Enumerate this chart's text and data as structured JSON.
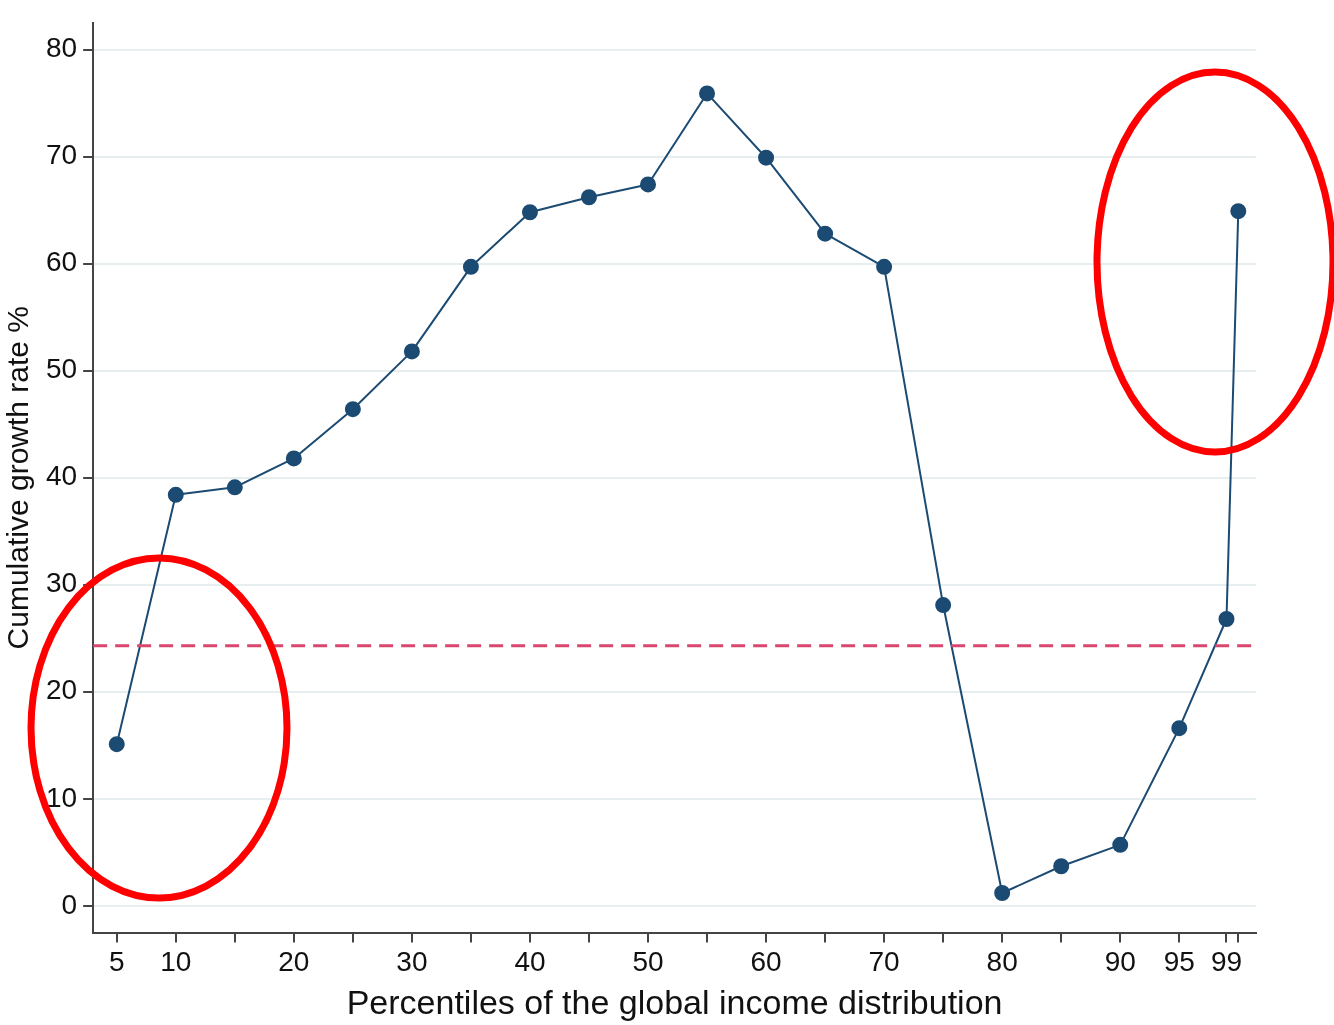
{
  "chart_data": {
    "type": "line",
    "xlabel": "Percentiles of the global income distribution",
    "ylabel": "Cumulative growth rate %",
    "x": [
      5,
      10,
      15,
      20,
      25,
      30,
      35,
      40,
      45,
      50,
      55,
      60,
      65,
      70,
      75,
      80,
      85,
      90,
      95,
      99,
      100
    ],
    "series": [
      {
        "color": "#1b4a72",
        "values": [
          15.1,
          38.4,
          39.1,
          41.8,
          46.4,
          51.8,
          59.7,
          64.8,
          66.2,
          67.4,
          75.9,
          69.9,
          62.8,
          59.7,
          28.1,
          1.2,
          3.7,
          5.7,
          16.6,
          26.8,
          64.9
        ]
      }
    ],
    "xlim": [
      3,
      101.5
    ],
    "xticks": [
      5,
      10,
      {
        "value": 15,
        "label": null
      },
      20,
      {
        "value": 25,
        "label": null
      },
      30,
      {
        "value": 35,
        "label": null
      },
      40,
      {
        "value": 45,
        "label": null
      },
      50,
      {
        "value": 55,
        "label": null
      },
      60,
      {
        "value": 65,
        "label": null
      },
      70,
      {
        "value": 75,
        "label": null
      },
      80,
      {
        "value": 85,
        "label": null
      },
      90,
      95,
      99,
      {
        "value": 100,
        "label": null
      }
    ],
    "ylim": [
      -2.5,
      82.5
    ],
    "yticks": [
      0,
      10,
      20,
      30,
      40,
      50,
      60,
      70,
      80
    ],
    "ref_lines": [
      {
        "axis": "y",
        "value": 24.3,
        "color": "#d9466e",
        "line_style": "dashed"
      }
    ],
    "grid": "y",
    "marker": "circle",
    "line_style": "solid",
    "legend": false
  }
}
